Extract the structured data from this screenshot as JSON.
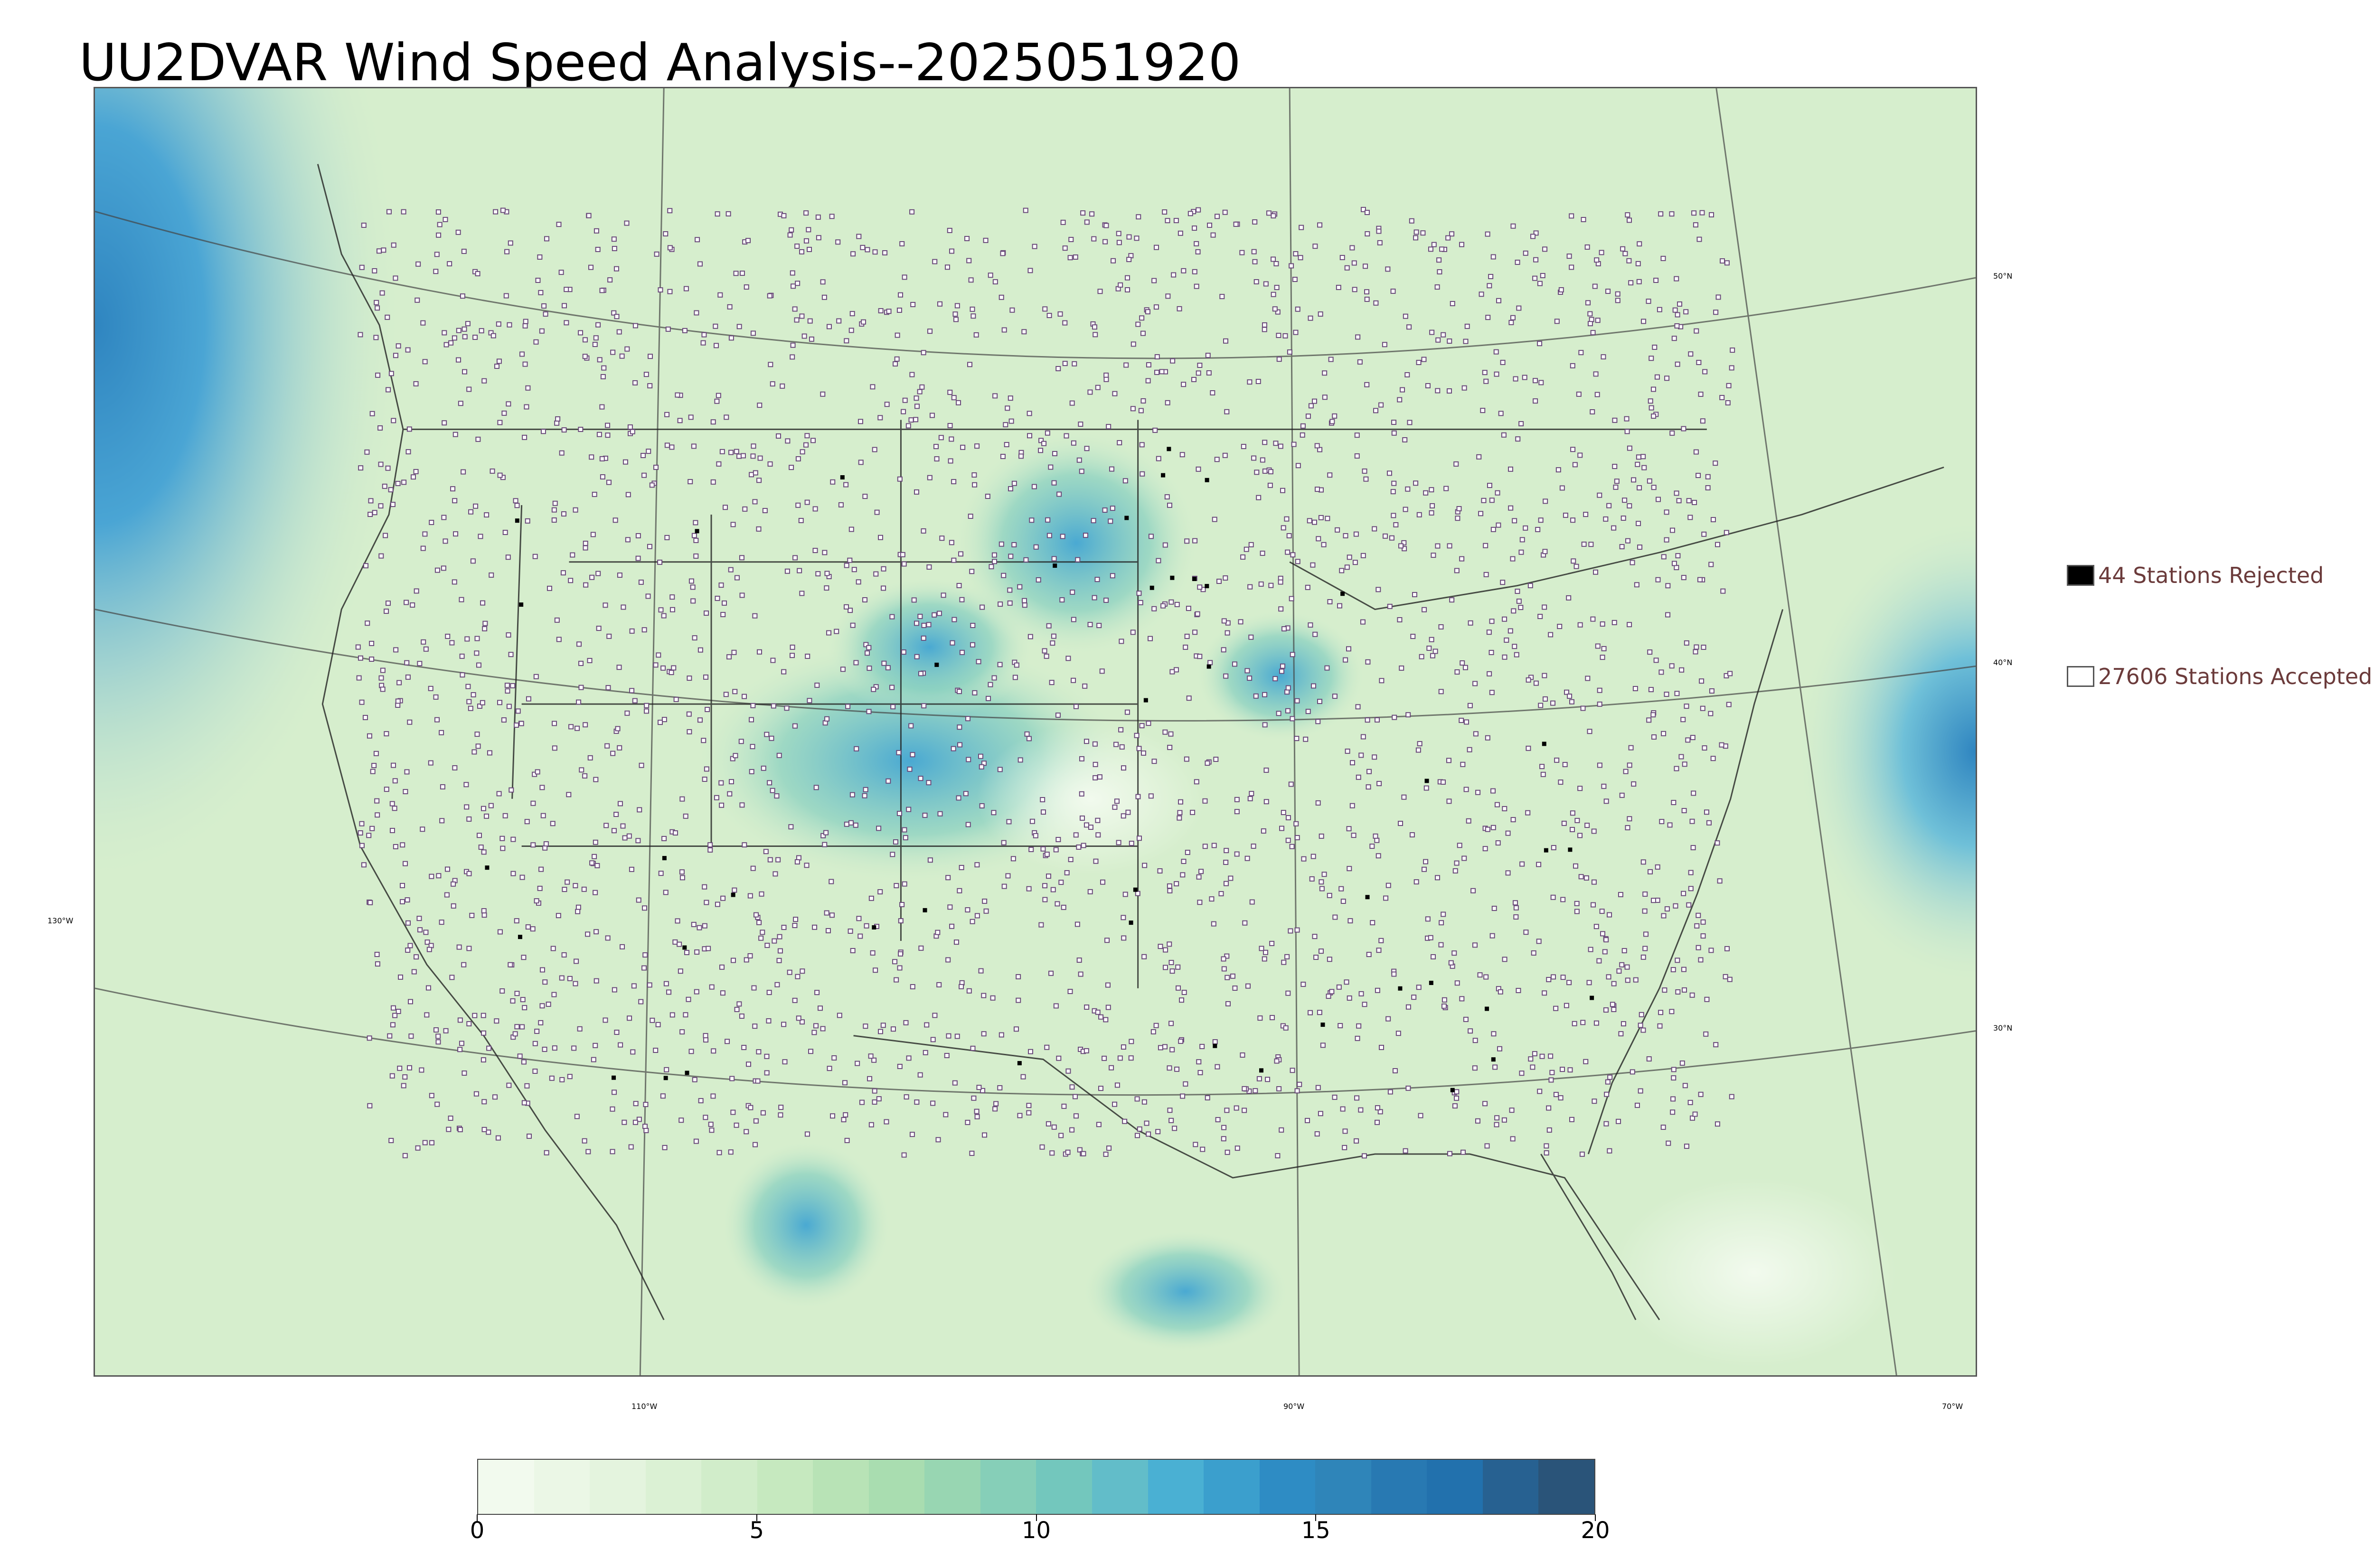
{
  "title": "UU2DVAR Wind Speed Analysis--2025051920",
  "lat_labels": [
    "50°N",
    "40°N",
    "30°N"
  ],
  "lon_labels": [
    "130°W",
    "110°W",
    "90°W",
    "70°W"
  ],
  "legend": {
    "rejected": {
      "label": "44 Stations Rejected",
      "count": 44,
      "color": "#000000"
    },
    "accepted": {
      "label": "27606 Stations Accepted",
      "count": 27606,
      "color": "#ffffff"
    }
  },
  "colorbar": {
    "min": 0,
    "max": 20,
    "ticks": [
      "0",
      "5",
      "10",
      "15",
      "20"
    ],
    "tick_values": [
      0,
      5,
      10,
      15,
      20
    ],
    "colors": [
      "#f2faee",
      "#ebf7e6",
      "#e4f4de",
      "#dbf1d4",
      "#d1edca",
      "#c6e9bf",
      "#b8e3b6",
      "#a9ddb0",
      "#98d6b2",
      "#86cfb8",
      "#73c7bd",
      "#62bdc9",
      "#4ab0d3",
      "#3b9fcd",
      "#2e8cc4",
      "#2f85b9",
      "#2879b2",
      "#2271ad",
      "#276191",
      "#2a5479"
    ]
  },
  "colors": {
    "land": "#d6eecd",
    "ocean_strong": "#4aa5d4",
    "boundary": "#333333",
    "station_outline": "#6a4a7a"
  }
}
